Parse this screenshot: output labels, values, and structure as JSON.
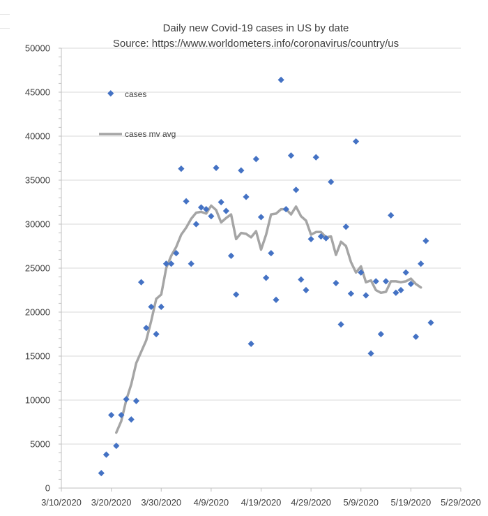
{
  "chart_data": {
    "type": "scatter",
    "title": "Daily new Covid-19 cases  in US by date",
    "subtitle": "Source: https://www.worldometers.info/coronavirus/country/us",
    "xlabel": "",
    "ylabel": "",
    "x_axis": "date",
    "xlim": [
      "2020-03-10",
      "2020-05-29"
    ],
    "x_ticks": [
      "3/10/2020",
      "3/20/2020",
      "3/30/2020",
      "4/9/2020",
      "4/19/2020",
      "4/29/2020",
      "5/9/2020",
      "5/19/2020",
      "5/29/2020"
    ],
    "ylim": [
      0,
      50000
    ],
    "y_ticks": [
      "0",
      "5000",
      "10000",
      "15000",
      "20000",
      "25000",
      "30000",
      "35000",
      "40000",
      "45000",
      "50000"
    ],
    "grid": true,
    "legend_position": "top-left",
    "series": [
      {
        "name": "cases",
        "kind": "markers",
        "color": "#4472C4",
        "points": [
          [
            "2020-03-18",
            1700
          ],
          [
            "2020-03-19",
            3800
          ],
          [
            "2020-03-20",
            8300
          ],
          [
            "2020-03-21",
            4800
          ],
          [
            "2020-03-22",
            8300
          ],
          [
            "2020-03-23",
            10100
          ],
          [
            "2020-03-24",
            7800
          ],
          [
            "2020-03-25",
            9900
          ],
          [
            "2020-03-26",
            23400
          ],
          [
            "2020-03-27",
            18200
          ],
          [
            "2020-03-28",
            20600
          ],
          [
            "2020-03-29",
            17500
          ],
          [
            "2020-03-30",
            20600
          ],
          [
            "2020-03-31",
            25500
          ],
          [
            "2020-04-01",
            25500
          ],
          [
            "2020-04-02",
            26700
          ],
          [
            "2020-04-03",
            36300
          ],
          [
            "2020-04-04",
            32600
          ],
          [
            "2020-04-05",
            25500
          ],
          [
            "2020-04-06",
            30000
          ],
          [
            "2020-04-07",
            31900
          ],
          [
            "2020-04-08",
            31700
          ],
          [
            "2020-04-09",
            30900
          ],
          [
            "2020-04-10",
            36400
          ],
          [
            "2020-04-11",
            32500
          ],
          [
            "2020-04-12",
            31500
          ],
          [
            "2020-04-13",
            26400
          ],
          [
            "2020-04-14",
            22000
          ],
          [
            "2020-04-15",
            36100
          ],
          [
            "2020-04-16",
            33100
          ],
          [
            "2020-04-17",
            16400
          ],
          [
            "2020-04-18",
            37400
          ],
          [
            "2020-04-19",
            30800
          ],
          [
            "2020-04-20",
            23900
          ],
          [
            "2020-04-21",
            26700
          ],
          [
            "2020-04-22",
            21400
          ],
          [
            "2020-04-23",
            46400
          ],
          [
            "2020-04-24",
            31700
          ],
          [
            "2020-04-25",
            37800
          ],
          [
            "2020-04-26",
            33900
          ],
          [
            "2020-04-27",
            23700
          ],
          [
            "2020-04-28",
            22500
          ],
          [
            "2020-04-29",
            28300
          ],
          [
            "2020-04-30",
            37600
          ],
          [
            "2020-05-01",
            28600
          ],
          [
            "2020-05-02",
            28400
          ],
          [
            "2020-05-03",
            34800
          ],
          [
            "2020-05-04",
            23300
          ],
          [
            "2020-05-05",
            18600
          ],
          [
            "2020-05-06",
            29700
          ],
          [
            "2020-05-07",
            22100
          ],
          [
            "2020-05-08",
            39400
          ],
          [
            "2020-05-09",
            24500
          ],
          [
            "2020-05-10",
            21900
          ],
          [
            "2020-05-11",
            15300
          ],
          [
            "2020-05-12",
            23500
          ],
          [
            "2020-05-13",
            17500
          ],
          [
            "2020-05-14",
            23500
          ],
          [
            "2020-05-15",
            31000
          ],
          [
            "2020-05-16",
            22200
          ],
          [
            "2020-05-17",
            22500
          ],
          [
            "2020-05-18",
            24500
          ],
          [
            "2020-05-19",
            23200
          ],
          [
            "2020-05-20",
            17200
          ],
          [
            "2020-05-21",
            25500
          ],
          [
            "2020-05-22",
            28100
          ],
          [
            "2020-05-23",
            18800
          ]
        ]
      },
      {
        "name": "cases mv avg",
        "kind": "line",
        "color": "#A5A5A5",
        "points": [
          [
            "2020-03-21",
            6300
          ],
          [
            "2020-03-22",
            7600
          ],
          [
            "2020-03-23",
            10000
          ],
          [
            "2020-03-24",
            11800
          ],
          [
            "2020-03-25",
            14200
          ],
          [
            "2020-03-26",
            15500
          ],
          [
            "2020-03-27",
            16800
          ],
          [
            "2020-03-28",
            19000
          ],
          [
            "2020-03-29",
            21500
          ],
          [
            "2020-03-30",
            22000
          ],
          [
            "2020-03-31",
            25000
          ],
          [
            "2020-04-01",
            26400
          ],
          [
            "2020-04-02",
            27400
          ],
          [
            "2020-04-03",
            28800
          ],
          [
            "2020-04-04",
            29600
          ],
          [
            "2020-04-05",
            30600
          ],
          [
            "2020-04-06",
            31300
          ],
          [
            "2020-04-07",
            31400
          ],
          [
            "2020-04-08",
            31200
          ],
          [
            "2020-04-09",
            32100
          ],
          [
            "2020-04-10",
            31600
          ],
          [
            "2020-04-11",
            30200
          ],
          [
            "2020-04-12",
            30700
          ],
          [
            "2020-04-13",
            31100
          ],
          [
            "2020-04-14",
            28300
          ],
          [
            "2020-04-15",
            29000
          ],
          [
            "2020-04-16",
            28900
          ],
          [
            "2020-04-17",
            28500
          ],
          [
            "2020-04-18",
            29200
          ],
          [
            "2020-04-19",
            27100
          ],
          [
            "2020-04-20",
            28800
          ],
          [
            "2020-04-21",
            31100
          ],
          [
            "2020-04-22",
            31200
          ],
          [
            "2020-04-23",
            31700
          ],
          [
            "2020-04-24",
            31700
          ],
          [
            "2020-04-25",
            31100
          ],
          [
            "2020-04-26",
            32000
          ],
          [
            "2020-04-27",
            30900
          ],
          [
            "2020-04-28",
            30400
          ],
          [
            "2020-04-29",
            28800
          ],
          [
            "2020-04-30",
            29100
          ],
          [
            "2020-05-01",
            29100
          ],
          [
            "2020-05-02",
            28500
          ],
          [
            "2020-05-03",
            28600
          ],
          [
            "2020-05-04",
            26500
          ],
          [
            "2020-05-05",
            28000
          ],
          [
            "2020-05-06",
            27500
          ],
          [
            "2020-05-07",
            25700
          ],
          [
            "2020-05-08",
            24500
          ],
          [
            "2020-05-09",
            25200
          ],
          [
            "2020-05-10",
            23400
          ],
          [
            "2020-05-11",
            23600
          ],
          [
            "2020-05-12",
            22500
          ],
          [
            "2020-05-13",
            22200
          ],
          [
            "2020-05-14",
            22300
          ],
          [
            "2020-05-15",
            23500
          ],
          [
            "2020-05-16",
            23500
          ],
          [
            "2020-05-17",
            23400
          ],
          [
            "2020-05-18",
            23500
          ],
          [
            "2020-05-19",
            23800
          ],
          [
            "2020-05-20",
            23200
          ],
          [
            "2020-05-21",
            22800
          ]
        ]
      }
    ]
  }
}
